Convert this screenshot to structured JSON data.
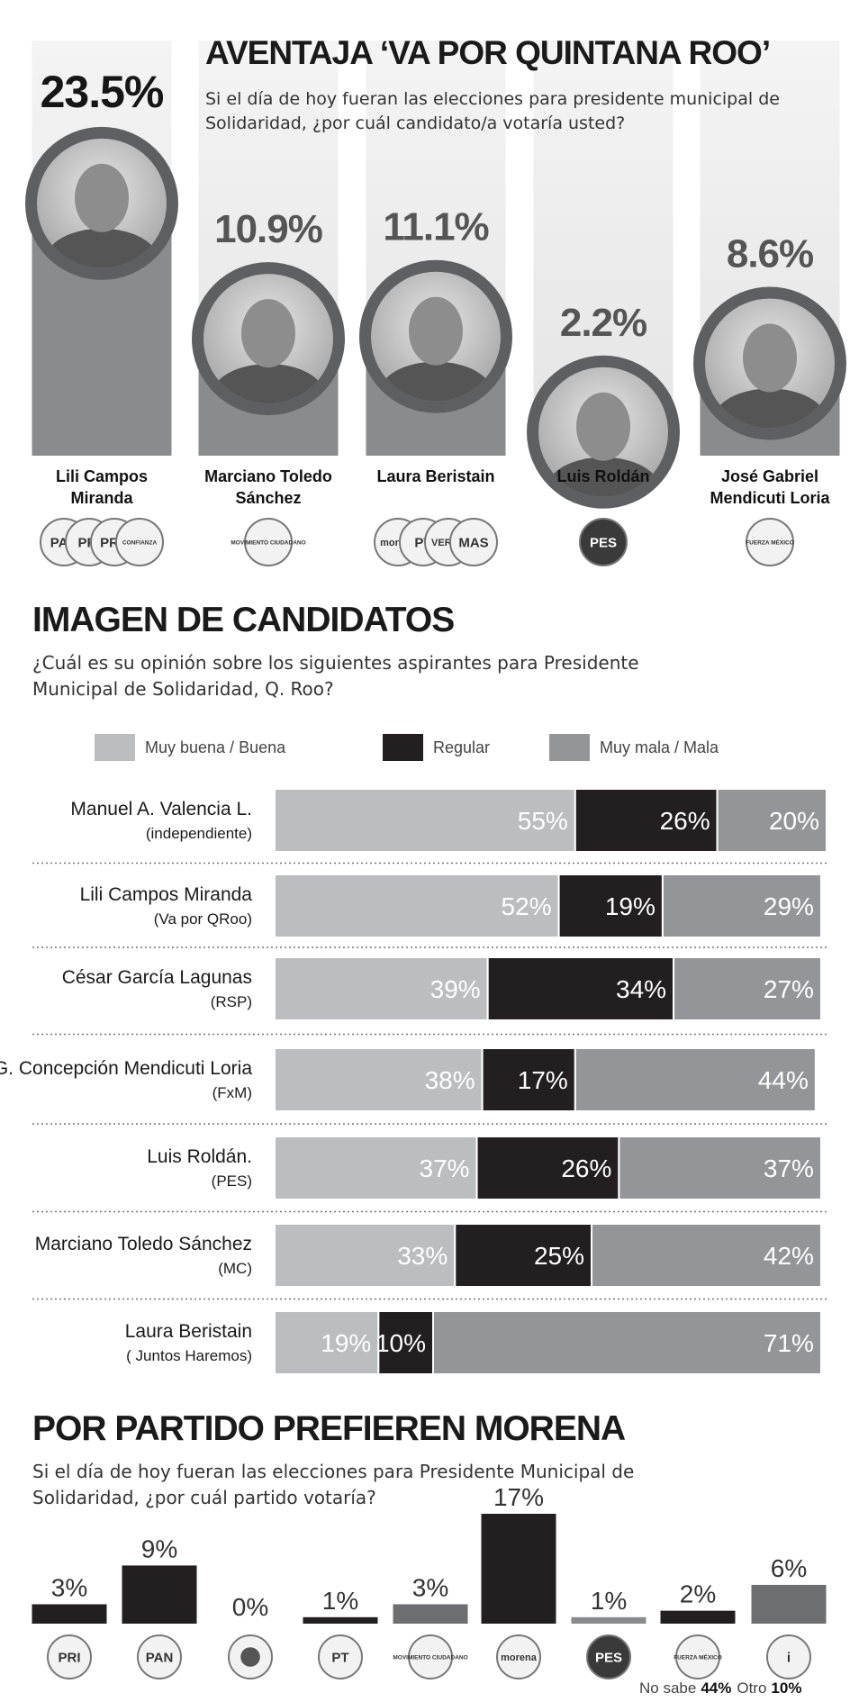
{
  "chart_data": [
    {
      "type": "bar",
      "title": "AVENTAJA ‘VA POR QUINTANA ROO’",
      "subtitle": "Si el día de hoy fueran las elecciones para presidente municipal de Solidaridad, ¿por cuál candidato/a votaría usted?",
      "categories": [
        "Lili Campos Miranda",
        "Marciano Toledo Sánchez",
        "Laura Beristain",
        "Luis Roldán",
        "José Gabriel Mendicuti Loria"
      ],
      "values": [
        23.5,
        10.9,
        11.1,
        2.2,
        8.6
      ],
      "value_labels": [
        "23.5%",
        "10.9%",
        "11.1%",
        "2.2%",
        "8.6%"
      ],
      "parties": [
        [
          "PAN",
          "PRI",
          "PRD",
          "CONFIANZA"
        ],
        [
          "MOVIMIENTO CIUDADANO"
        ],
        [
          "morena",
          "PT",
          "VERDE",
          "MAS"
        ],
        [
          "PES"
        ],
        [
          "FUERZA MÉXICO"
        ]
      ],
      "color": "#8a8b8d",
      "ylim": [
        0,
        25
      ]
    },
    {
      "type": "stacked_barh",
      "title": "IMAGEN DE CANDIDATOS",
      "subtitle": "¿Cuál es su opinión sobre los siguientes aspirantes para Presidente Municipal de Solidaridad, Q. Roo?",
      "categories": [
        "Manuel A. Valencia L.",
        "Lili Campos Miranda",
        "César García Lagunas",
        "José G. Concepción Mendicuti Loria",
        "Luis Roldán.",
        "Marciano Toledo Sánchez",
        "Laura Beristain"
      ],
      "category_notes": [
        "(independiente)",
        "(Va por QRoo)",
        "(RSP)",
        "(FxM)",
        "(PES)",
        "(MC)",
        "( Juntos Haremos)"
      ],
      "series": [
        {
          "name": "Muy buena / Buena",
          "color": "#bcbdbf",
          "values": [
            55,
            52,
            39,
            38,
            37,
            33,
            19
          ],
          "value_labels": [
            "55%",
            "52%",
            "39%",
            "38%",
            "37%",
            "33%",
            "19%"
          ]
        },
        {
          "name": "Regular",
          "color": "#231f20",
          "values": [
            26,
            19,
            34,
            17,
            26,
            25,
            10
          ],
          "value_labels": [
            "26%",
            "19%",
            "34%",
            "17%",
            "26%",
            "25%",
            "10%"
          ]
        },
        {
          "name": "Muy mala / Mala",
          "color": "#939598",
          "values": [
            20,
            29,
            27,
            44,
            37,
            42,
            71
          ],
          "value_labels": [
            "20%",
            "29%",
            "27%",
            "44%",
            "37%",
            "42%",
            "71%"
          ]
        }
      ],
      "xlim": [
        0,
        101
      ]
    },
    {
      "type": "bar",
      "title": "POR PARTIDO PREFIEREN MORENA",
      "subtitle": "Si el día de hoy fueran las elecciones para Presidente Municipal de Solidaridad, ¿por cuál partido votaría?",
      "categories": [
        "PRI",
        "PAN",
        null,
        "PT",
        "MOVIMIENTO CIUDADANO",
        "morena",
        "PES",
        "FUERZA MÉXICO",
        "i"
      ],
      "values": [
        3,
        9,
        0,
        1,
        3,
        17,
        1,
        2,
        6
      ],
      "value_labels": [
        "3%",
        "9%",
        "0%",
        "1%",
        "3%",
        "17%",
        "1%",
        "2%",
        "6%"
      ],
      "colors": [
        "#231f20",
        "#231f20",
        "#8a8b8d",
        "#231f20",
        "#6d6e70",
        "#231f20",
        "#8a8b8d",
        "#231f20",
        "#6d6e70"
      ],
      "ylim": [
        0,
        17
      ],
      "notes": [
        {
          "label": "No sabe",
          "value_label": "44%"
        },
        {
          "label": "Otro",
          "value_label": "10%"
        }
      ]
    }
  ]
}
